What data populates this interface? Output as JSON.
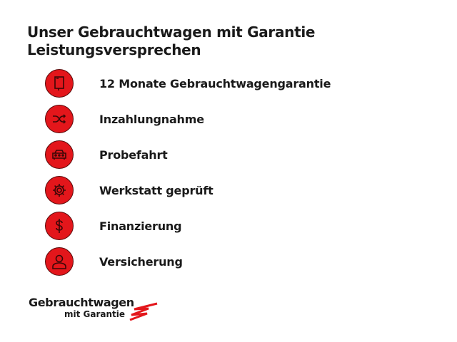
{
  "title": {
    "line1": "Unser Gebrauchtwagen mit Garantie",
    "line2": "Leistungsversprechen"
  },
  "items": [
    {
      "label": "12 Monate Gebrauchtwagengarantie",
      "icon": "booklet-icon"
    },
    {
      "label": "Inzahlungnahme",
      "icon": "shuffle-icon"
    },
    {
      "label": "Probefahrt",
      "icon": "car-icon"
    },
    {
      "label": "Werkstatt geprüft",
      "icon": "gear-icon"
    },
    {
      "label": "Finanzierung",
      "icon": "dollar-icon"
    },
    {
      "label": "Versicherung",
      "icon": "person-icon"
    }
  ],
  "logo": {
    "line1": "Gebrauchtwagen",
    "line2": "mit Garantie"
  },
  "colors": {
    "accent": "#e3161b"
  }
}
